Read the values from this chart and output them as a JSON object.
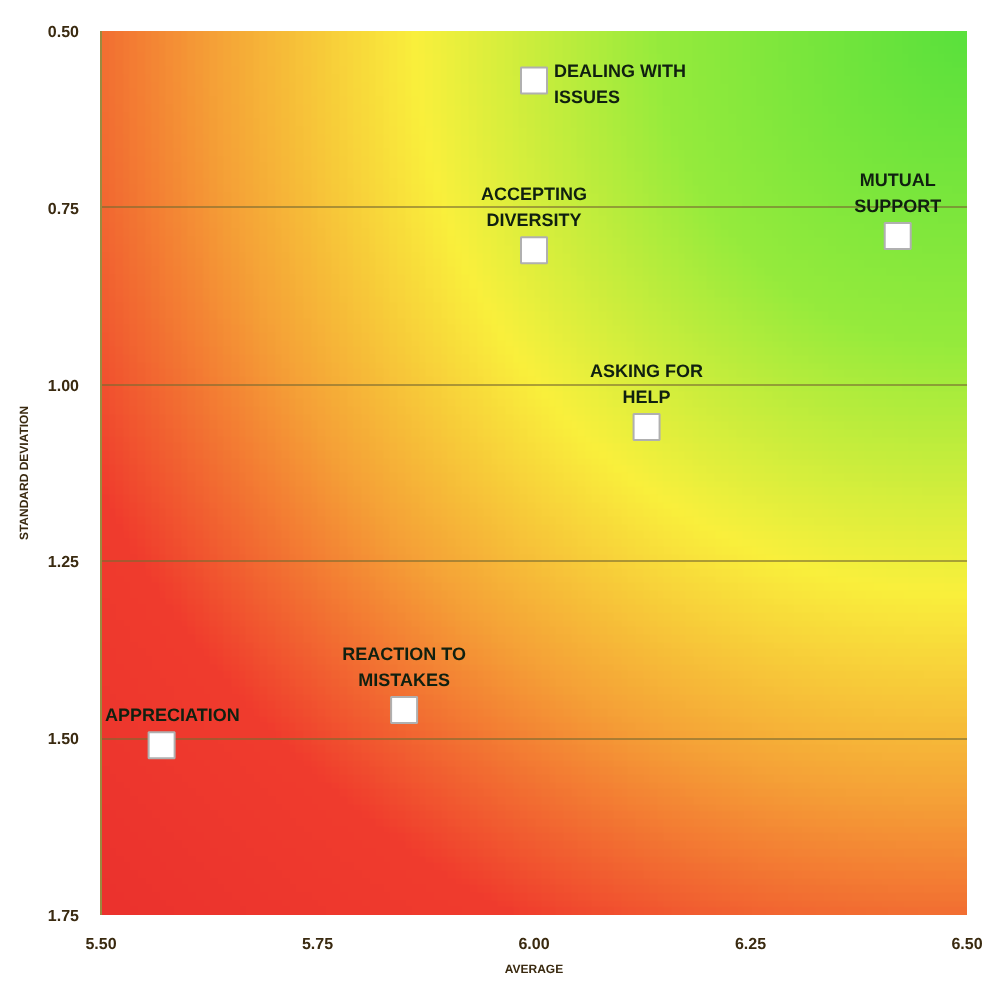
{
  "chart_data": {
    "type": "scatter",
    "xlabel": "AVERAGE",
    "ylabel": "STANDARD DEVIATION",
    "x": [
      6.0,
      6.0,
      6.42,
      6.13,
      5.85,
      5.57
    ],
    "series": [
      {
        "color": "#ffffff",
        "values": [
          0.57,
          0.81,
          0.79,
          1.06,
          1.46,
          1.51
        ]
      }
    ],
    "marker": "square",
    "xlim": [
      5.5,
      6.5
    ],
    "xticks": [
      {
        "value": 5.5,
        "label": "5.50"
      },
      {
        "value": 5.75,
        "label": "5.75"
      },
      {
        "value": 6.0,
        "label": "6.00"
      },
      {
        "value": 6.25,
        "label": "6.25"
      },
      {
        "value": 6.5,
        "label": "6.50"
      }
    ],
    "ylim": [
      1.75,
      0.5
    ],
    "yticks": [
      {
        "value": 0.5,
        "label": "0.50"
      },
      {
        "value": 0.75,
        "label": "0.75"
      },
      {
        "value": 1.0,
        "label": "1.00"
      },
      {
        "value": 1.25,
        "label": "1.25"
      },
      {
        "value": 1.5,
        "label": "1.50"
      },
      {
        "value": 1.75,
        "label": "1.75"
      }
    ],
    "grid": "y",
    "annotations": [
      {
        "text": "DEALING WITH\nISSUES",
        "x": 6.0,
        "y": 0.57
      },
      {
        "text": "ACCEPTING\nDIVERSITY",
        "x": 6.0,
        "y": 0.81
      },
      {
        "text": "MUTUAL\nSUPPORT",
        "x": 6.42,
        "y": 0.79
      },
      {
        "text": "ASKING FOR\nHELP",
        "x": 6.13,
        "y": 1.06
      },
      {
        "text": "REACTION TO\nMISTAKES",
        "x": 5.85,
        "y": 1.46
      },
      {
        "text": "APPRECIATION",
        "x": 5.57,
        "y": 1.51
      }
    ]
  }
}
